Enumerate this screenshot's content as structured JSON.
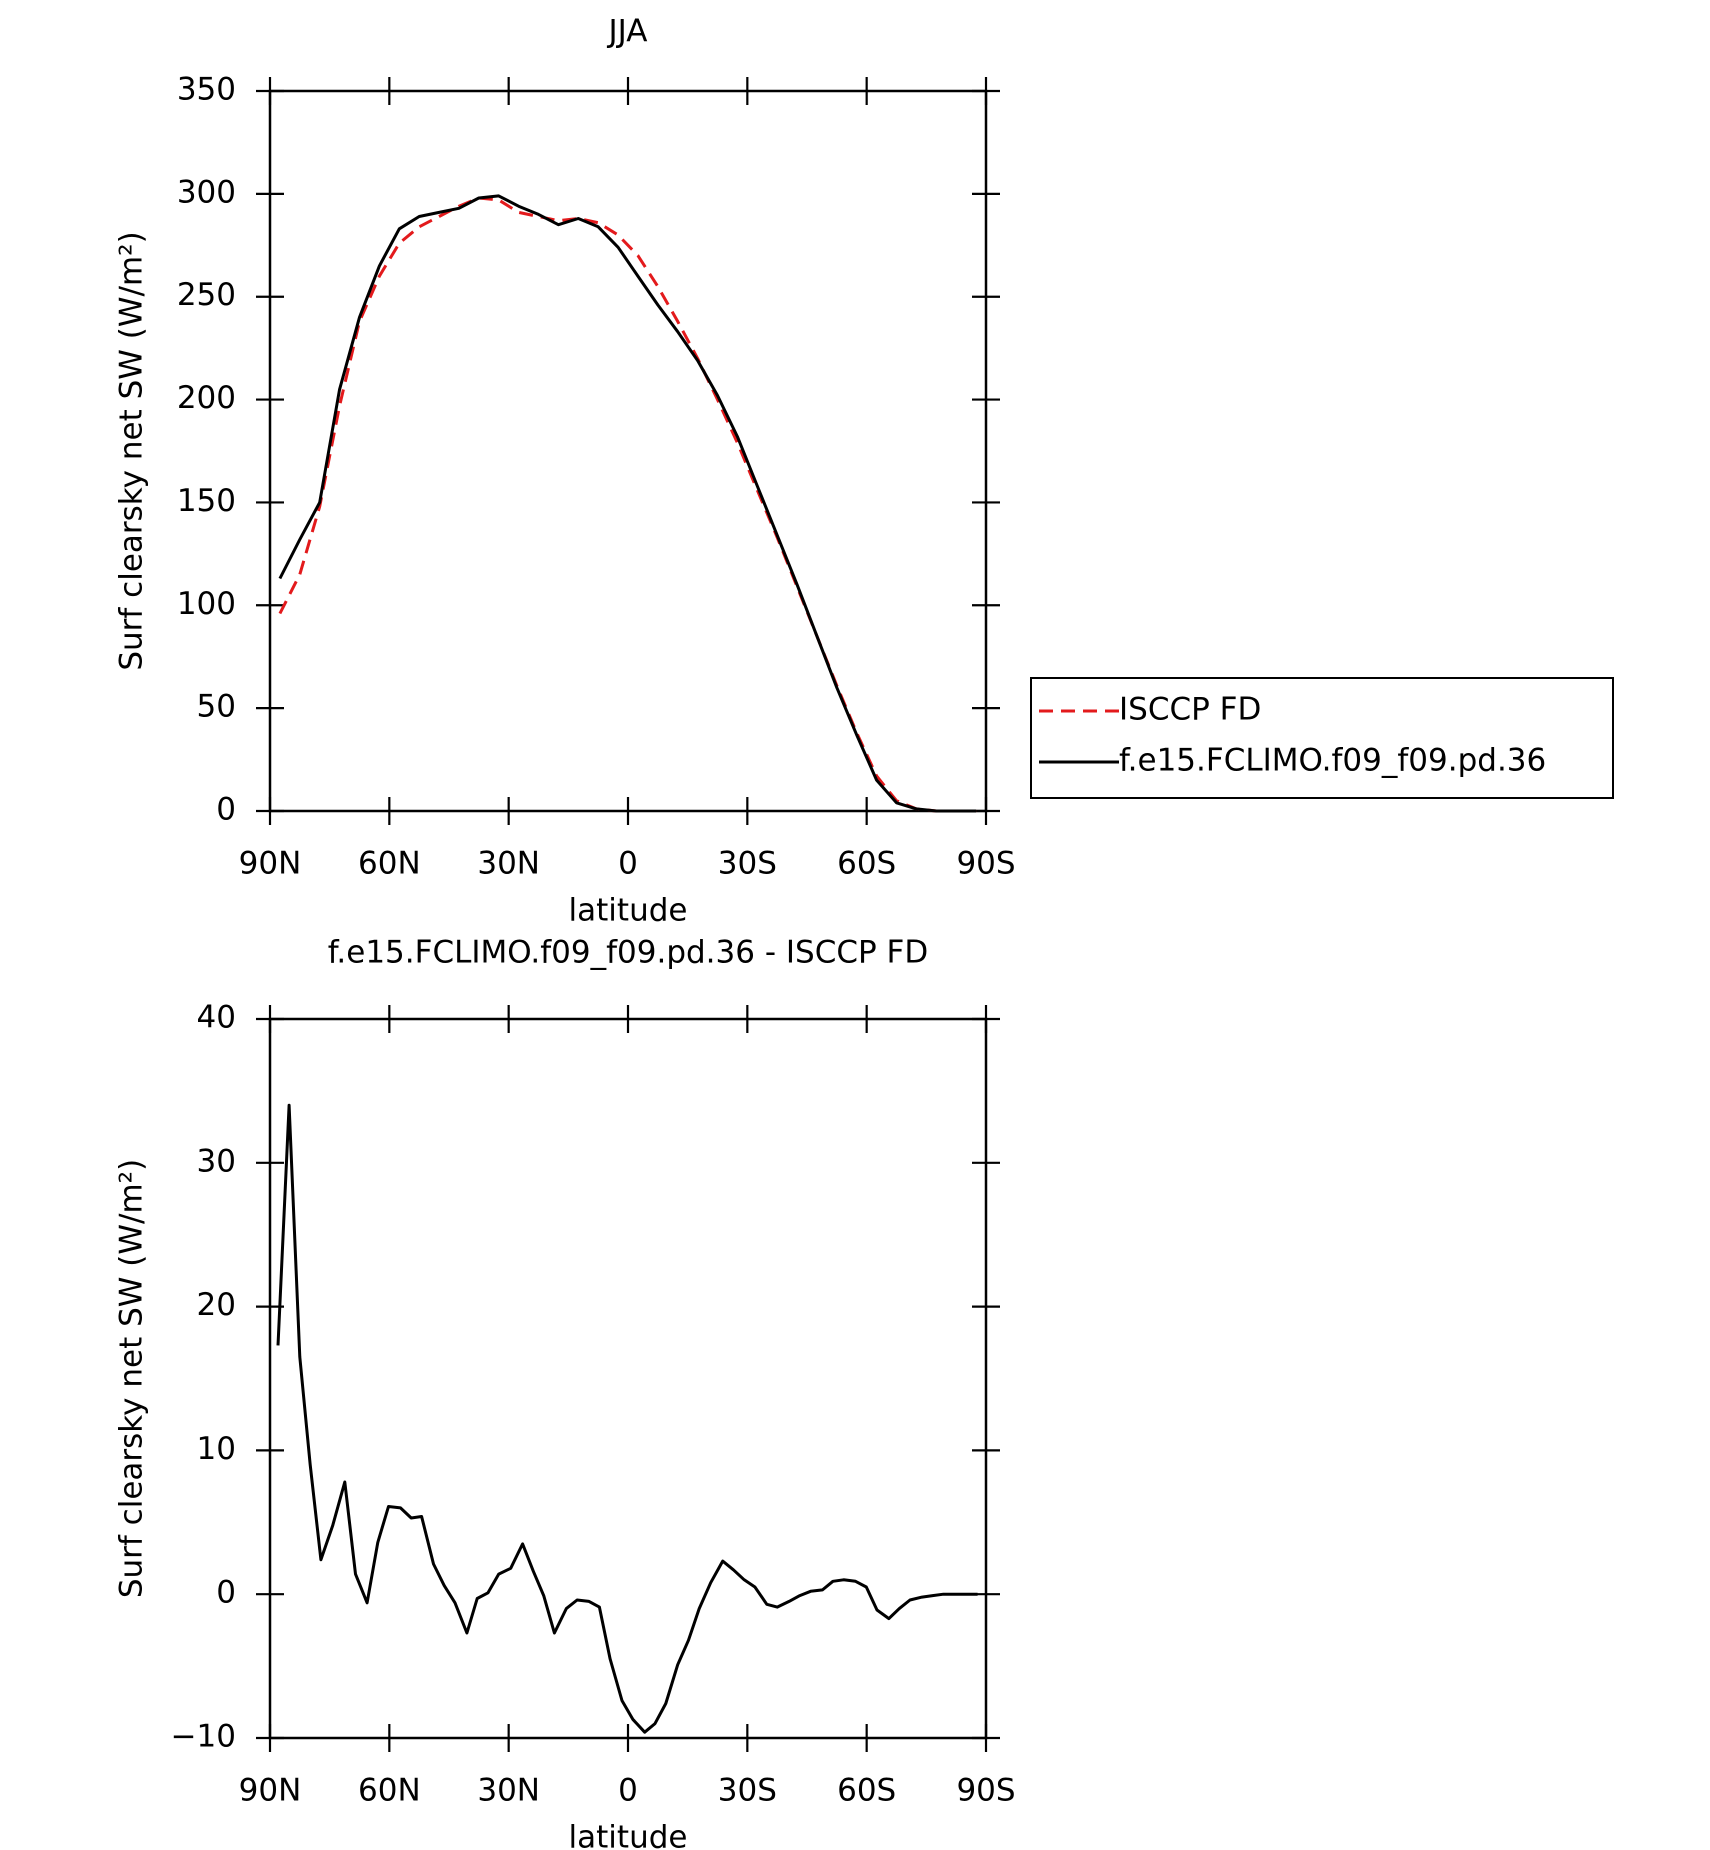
{
  "chart_data": [
    {
      "type": "line",
      "title": "JJA",
      "xlabel": "latitude",
      "ylabel": "Surf clearsky net SW (W/m²)",
      "xlim": [
        90,
        -90
      ],
      "xticks": [
        {
          "value": 90,
          "label": "90N"
        },
        {
          "value": 60,
          "label": "60N"
        },
        {
          "value": 30,
          "label": "30N"
        },
        0,
        {
          "value": -30,
          "label": "30S"
        },
        {
          "value": -60,
          "label": "60S"
        },
        {
          "value": -90,
          "label": "90S"
        }
      ],
      "ylim": [
        0,
        350
      ],
      "yticks": [
        0,
        50,
        100,
        150,
        200,
        250,
        300,
        350
      ],
      "legend": "right",
      "x": [
        87.5,
        82.5,
        77.5,
        72.5,
        67.5,
        62.5,
        57.5,
        52.5,
        47.5,
        42.5,
        37.5,
        32.5,
        27.5,
        22.5,
        17.5,
        12.5,
        7.5,
        2.5,
        -2.5,
        -7.5,
        -12.5,
        -17.5,
        -22.5,
        -27.5,
        -32.5,
        -37.5,
        -42.5,
        -47.5,
        -52.5,
        -57.5,
        -62.5,
        -67.5,
        -72.5,
        -77.5,
        -82.5,
        -87.5
      ],
      "series": [
        {
          "name": "ISCCP FD",
          "color": "#e31a1c",
          "dash": true,
          "values": [
            96,
            115,
            148,
            197,
            238,
            260,
            276,
            284,
            289,
            294,
            298,
            297,
            291,
            289,
            287,
            288,
            286,
            280,
            270,
            255,
            238,
            220,
            200,
            179,
            156,
            133,
            109,
            85,
            61,
            38,
            17,
            5,
            1,
            0,
            0,
            0
          ]
        },
        {
          "name": "f.e15.FCLIMO.f09_f09.pd.36",
          "color": "#000000",
          "dash": false,
          "values": [
            113,
            132,
            150,
            205,
            240,
            265,
            283,
            289,
            291,
            293,
            298,
            299,
            294,
            290,
            285,
            288,
            284,
            274,
            260,
            246,
            233,
            219,
            202,
            182,
            158,
            134,
            110,
            85,
            60,
            37,
            15,
            4,
            1,
            0,
            0,
            0
          ]
        }
      ]
    },
    {
      "type": "line",
      "title": "f.e15.FCLIMO.f09_f09.pd.36 - ISCCP FD",
      "xlabel": "latitude",
      "ylabel": "Surf clearsky net SW (W/m²)",
      "xlim": [
        90,
        -90
      ],
      "xticks": [
        {
          "value": 90,
          "label": "90N"
        },
        {
          "value": 60,
          "label": "60N"
        },
        {
          "value": 30,
          "label": "30N"
        },
        0,
        {
          "value": -30,
          "label": "30S"
        },
        {
          "value": -60,
          "label": "60S"
        },
        {
          "value": -90,
          "label": "90S"
        }
      ],
      "ylim": [
        -10,
        40
      ],
      "yticks": [
        {
          "value": -10,
          "label": "−10"
        },
        0,
        10,
        20,
        30,
        40
      ],
      "x": [
        88,
        85.2,
        82.5,
        79.9,
        77.2,
        74.2,
        71.2,
        68.5,
        65.6,
        62.9,
        60.2,
        57.2,
        54.5,
        51.9,
        48.9,
        46.2,
        43.5,
        40.5,
        37.9,
        35.2,
        32.5,
        29.5,
        26.5,
        23.8,
        21.2,
        18.5,
        15.5,
        12.8,
        9.8,
        7.2,
        4.5,
        1.5,
        -1.2,
        -4.2,
        -6.8,
        -9.5,
        -12.5,
        -15.2,
        -17.9,
        -20.8,
        -23.8,
        -26.5,
        -29.2,
        -31.9,
        -34.9,
        -37.5,
        -40.5,
        -43.2,
        -45.9,
        -48.9,
        -51.5,
        -54.2,
        -57.2,
        -59.9,
        -62.6,
        -65.6,
        -68.2,
        -70.9,
        -73.9,
        -76.6,
        -79.3,
        -82.2,
        -84.9,
        -87.9
      ],
      "series": [
        {
          "color": "#000000",
          "dash": false,
          "values": [
            17.3,
            34,
            16.5,
            9,
            2.4,
            4.8,
            7.8,
            1.4,
            -0.6,
            3.6,
            6.1,
            6.0,
            5.3,
            5.4,
            2.1,
            0.6,
            -0.6,
            -2.7,
            -0.3,
            0.1,
            1.4,
            1.8,
            3.5,
            1.6,
            -0.1,
            -2.7,
            -1.0,
            -0.4,
            -0.5,
            -0.9,
            -4.5,
            -7.4,
            -8.7,
            -9.6,
            -9.0,
            -7.6,
            -4.9,
            -3.2,
            -1.0,
            0.8,
            2.3,
            1.7,
            1.0,
            0.5,
            -0.7,
            -0.9,
            -0.5,
            -0.1,
            0.2,
            0.3,
            0.9,
            1.0,
            0.9,
            0.5,
            -1.1,
            -1.7,
            -1.0,
            -0.4,
            -0.2,
            -0.1,
            0,
            0,
            0,
            0
          ]
        }
      ]
    }
  ]
}
